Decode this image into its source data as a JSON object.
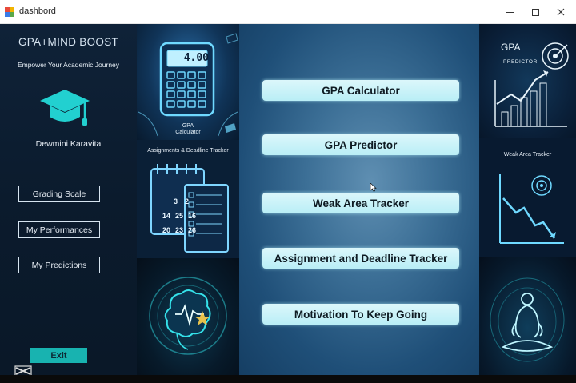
{
  "window": {
    "title": "dashbord"
  },
  "sidebar": {
    "brand_title": "GPA+MIND BOOST",
    "brand_subtitle": "Empower Your Academic Journey",
    "user_name": "Dewmini Karavita",
    "buttons": [
      {
        "label": "Grading Scale"
      },
      {
        "label": "My Performances"
      },
      {
        "label": "My Predictions"
      }
    ],
    "exit_label": "Exit"
  },
  "left_images": {
    "calculator_display": "4.00",
    "calculator_label_1": "GPA",
    "calculator_label_2": "Calculator",
    "assignments_label": "Assignments & Deadline Tracker",
    "calendar_numbers": [
      "3",
      "2",
      "14",
      "25",
      "16",
      "20",
      "23",
      "26"
    ]
  },
  "menu": {
    "items": [
      {
        "label": "GPA Calculator"
      },
      {
        "label": "GPA Predictor"
      },
      {
        "label": "Weak Area Tracker"
      },
      {
        "label": "Assignment and Deadline Tracker"
      },
      {
        "label": "Motivation To Keep Going"
      }
    ]
  },
  "right_images": {
    "predictor_title": "GPA",
    "predictor_subtitle": "PREDICTOR",
    "weak_area_label": "Weak Area Tracker"
  },
  "colors": {
    "exit_button": "#18b3b0",
    "menu_button": "#c8f3f9",
    "sidebar_bg": "#0f2238",
    "center_bg": "#3c6f96"
  }
}
